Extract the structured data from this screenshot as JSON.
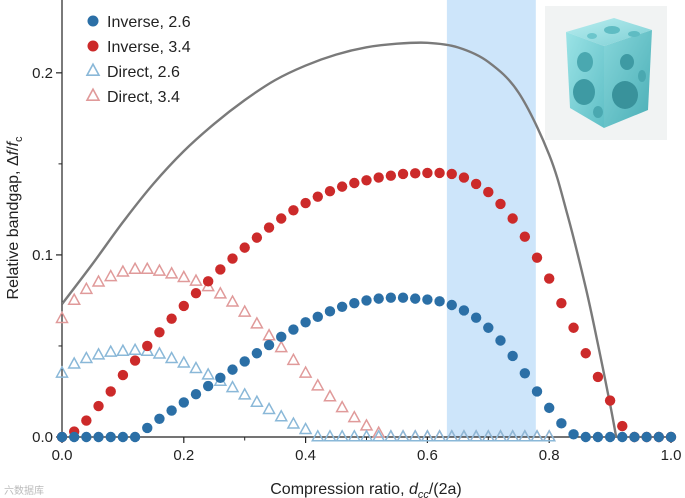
{
  "chart_data": {
    "type": "scatter",
    "xlabel_main": "Compression ratio, ",
    "xlabel_var": "d",
    "xlabel_sub": "cc",
    "xlabel_tail": "/(2a)",
    "ylabel_main": "Relative bandgap, Δ",
    "ylabel_var": "f",
    "ylabel_slash": "/",
    "ylabel_var2": "f",
    "ylabel_sub": "c",
    "xlim": [
      0,
      1.0
    ],
    "ylim": [
      0,
      0.24
    ],
    "x_ticks": [
      "0.0",
      "0.2",
      "0.4",
      "0.6",
      "0.8",
      "1.0"
    ],
    "x_tick_values": [
      0,
      0.2,
      0.4,
      0.6,
      0.8,
      1.0
    ],
    "y_ticks": [
      "0.0",
      "0.1",
      "0.2"
    ],
    "y_tick_values": [
      0,
      0.1,
      0.2
    ],
    "highlight_band": [
      0.632,
      0.778
    ],
    "legend_position": "top-left",
    "curve": {
      "x": [
        0.0,
        0.05,
        0.1,
        0.15,
        0.2,
        0.25,
        0.3,
        0.35,
        0.4,
        0.45,
        0.5,
        0.55,
        0.6,
        0.65,
        0.7,
        0.75,
        0.8,
        0.83,
        0.86,
        0.88,
        0.9,
        0.91
      ],
      "y": [
        0.073,
        0.095,
        0.118,
        0.139,
        0.157,
        0.172,
        0.185,
        0.196,
        0.204,
        0.21,
        0.214,
        0.216,
        0.2165,
        0.214,
        0.206,
        0.189,
        0.155,
        0.122,
        0.082,
        0.051,
        0.018,
        0.0
      ]
    },
    "series": [
      {
        "name": "Inverse, 2.6",
        "color": "#2b6fa6",
        "marker": "circle",
        "x": [
          0.0,
          0.02,
          0.04,
          0.06,
          0.08,
          0.1,
          0.12,
          0.14,
          0.16,
          0.18,
          0.2,
          0.22,
          0.24,
          0.26,
          0.28,
          0.3,
          0.32,
          0.34,
          0.36,
          0.38,
          0.4,
          0.42,
          0.44,
          0.46,
          0.48,
          0.5,
          0.52,
          0.54,
          0.56,
          0.58,
          0.6,
          0.62,
          0.64,
          0.66,
          0.68,
          0.7,
          0.72,
          0.74,
          0.76,
          0.78,
          0.8,
          0.82,
          0.84,
          0.86,
          0.88,
          0.9,
          0.92,
          0.94,
          0.96,
          0.98,
          1.0
        ],
        "y": [
          0.0,
          0.0,
          0.0,
          0.0,
          0.0,
          0.0,
          0.0,
          0.005,
          0.01,
          0.0145,
          0.019,
          0.0235,
          0.028,
          0.0325,
          0.037,
          0.0415,
          0.046,
          0.0505,
          0.055,
          0.059,
          0.063,
          0.066,
          0.069,
          0.0715,
          0.0735,
          0.075,
          0.076,
          0.0765,
          0.0765,
          0.076,
          0.0755,
          0.0745,
          0.0725,
          0.0695,
          0.0655,
          0.06,
          0.053,
          0.0445,
          0.035,
          0.025,
          0.016,
          0.0075,
          0.0015,
          0.0,
          0.0,
          0.0,
          0.0,
          0.0,
          0.0,
          0.0,
          0.0
        ]
      },
      {
        "name": "Inverse, 3.4",
        "color": "#cc2a2a",
        "marker": "circle",
        "x": [
          0.0,
          0.02,
          0.04,
          0.06,
          0.08,
          0.1,
          0.12,
          0.14,
          0.16,
          0.18,
          0.2,
          0.22,
          0.24,
          0.26,
          0.28,
          0.3,
          0.32,
          0.34,
          0.36,
          0.38,
          0.4,
          0.42,
          0.44,
          0.46,
          0.48,
          0.5,
          0.52,
          0.54,
          0.56,
          0.58,
          0.6,
          0.62,
          0.64,
          0.66,
          0.68,
          0.7,
          0.72,
          0.74,
          0.76,
          0.78,
          0.8,
          0.82,
          0.84,
          0.86,
          0.88,
          0.9,
          0.92,
          0.94,
          0.96,
          0.98,
          1.0
        ],
        "y": [
          0.0,
          0.003,
          0.009,
          0.017,
          0.025,
          0.034,
          0.042,
          0.05,
          0.0575,
          0.065,
          0.072,
          0.079,
          0.0855,
          0.092,
          0.098,
          0.104,
          0.1095,
          0.115,
          0.12,
          0.1245,
          0.1285,
          0.132,
          0.135,
          0.1375,
          0.1395,
          0.141,
          0.1425,
          0.1435,
          0.1445,
          0.1448,
          0.145,
          0.145,
          0.1445,
          0.1425,
          0.139,
          0.1345,
          0.128,
          0.12,
          0.11,
          0.0985,
          0.087,
          0.0735,
          0.06,
          0.046,
          0.033,
          0.02,
          0.006,
          0.0,
          0.0,
          0.0,
          0.0
        ]
      },
      {
        "name": "Direct, 2.6",
        "color": "#8ab8d8",
        "marker": "triangle",
        "x": [
          0.0,
          0.02,
          0.04,
          0.06,
          0.08,
          0.1,
          0.12,
          0.14,
          0.16,
          0.18,
          0.2,
          0.22,
          0.24,
          0.26,
          0.28,
          0.3,
          0.32,
          0.34,
          0.36,
          0.38,
          0.4,
          0.42,
          0.44,
          0.46,
          0.48,
          0.5,
          0.52,
          0.54,
          0.56,
          0.58,
          0.6,
          0.62,
          0.64,
          0.66,
          0.68,
          0.7,
          0.72,
          0.74,
          0.76,
          0.78,
          0.8
        ],
        "y": [
          0.035,
          0.04,
          0.043,
          0.045,
          0.0465,
          0.047,
          0.0475,
          0.047,
          0.0455,
          0.043,
          0.0405,
          0.0375,
          0.034,
          0.0305,
          0.027,
          0.023,
          0.019,
          0.015,
          0.011,
          0.007,
          0.004,
          0.0,
          0.0,
          0.0,
          0.0,
          0.0,
          0.0,
          0.0,
          0.0,
          0.0,
          0.0,
          0.0,
          0.0,
          0.0,
          0.0,
          0.0,
          0.0,
          0.0,
          0.0,
          0.0,
          0.0
        ]
      },
      {
        "name": "Direct, 3.4",
        "color": "#e09a9a",
        "marker": "triangle",
        "x": [
          0.0,
          0.02,
          0.04,
          0.06,
          0.08,
          0.1,
          0.12,
          0.14,
          0.16,
          0.18,
          0.2,
          0.22,
          0.24,
          0.26,
          0.28,
          0.3,
          0.32,
          0.34,
          0.36,
          0.38,
          0.4,
          0.42,
          0.44,
          0.46,
          0.48,
          0.5,
          0.52,
          0.54,
          0.56,
          0.58,
          0.6,
          0.62,
          0.64,
          0.66,
          0.68,
          0.7,
          0.72,
          0.74,
          0.76,
          0.78,
          0.8
        ],
        "y": [
          0.065,
          0.075,
          0.081,
          0.085,
          0.088,
          0.0905,
          0.092,
          0.092,
          0.091,
          0.0895,
          0.0875,
          0.0855,
          0.0825,
          0.0785,
          0.074,
          0.0685,
          0.062,
          0.0555,
          0.049,
          0.042,
          0.035,
          0.028,
          0.022,
          0.016,
          0.0105,
          0.006,
          0.002,
          0.0,
          0.0,
          0.0,
          0.0,
          0.0,
          0.0,
          0.0,
          0.0,
          0.0,
          0.0,
          0.0,
          0.0,
          0.0,
          0.0
        ]
      }
    ],
    "curve_color": "#7a7a7a",
    "band_color": "#cde5fa"
  },
  "inset": {
    "icon": "cube-icon",
    "color": "#8fd8dc"
  },
  "watermark": "六数据库"
}
